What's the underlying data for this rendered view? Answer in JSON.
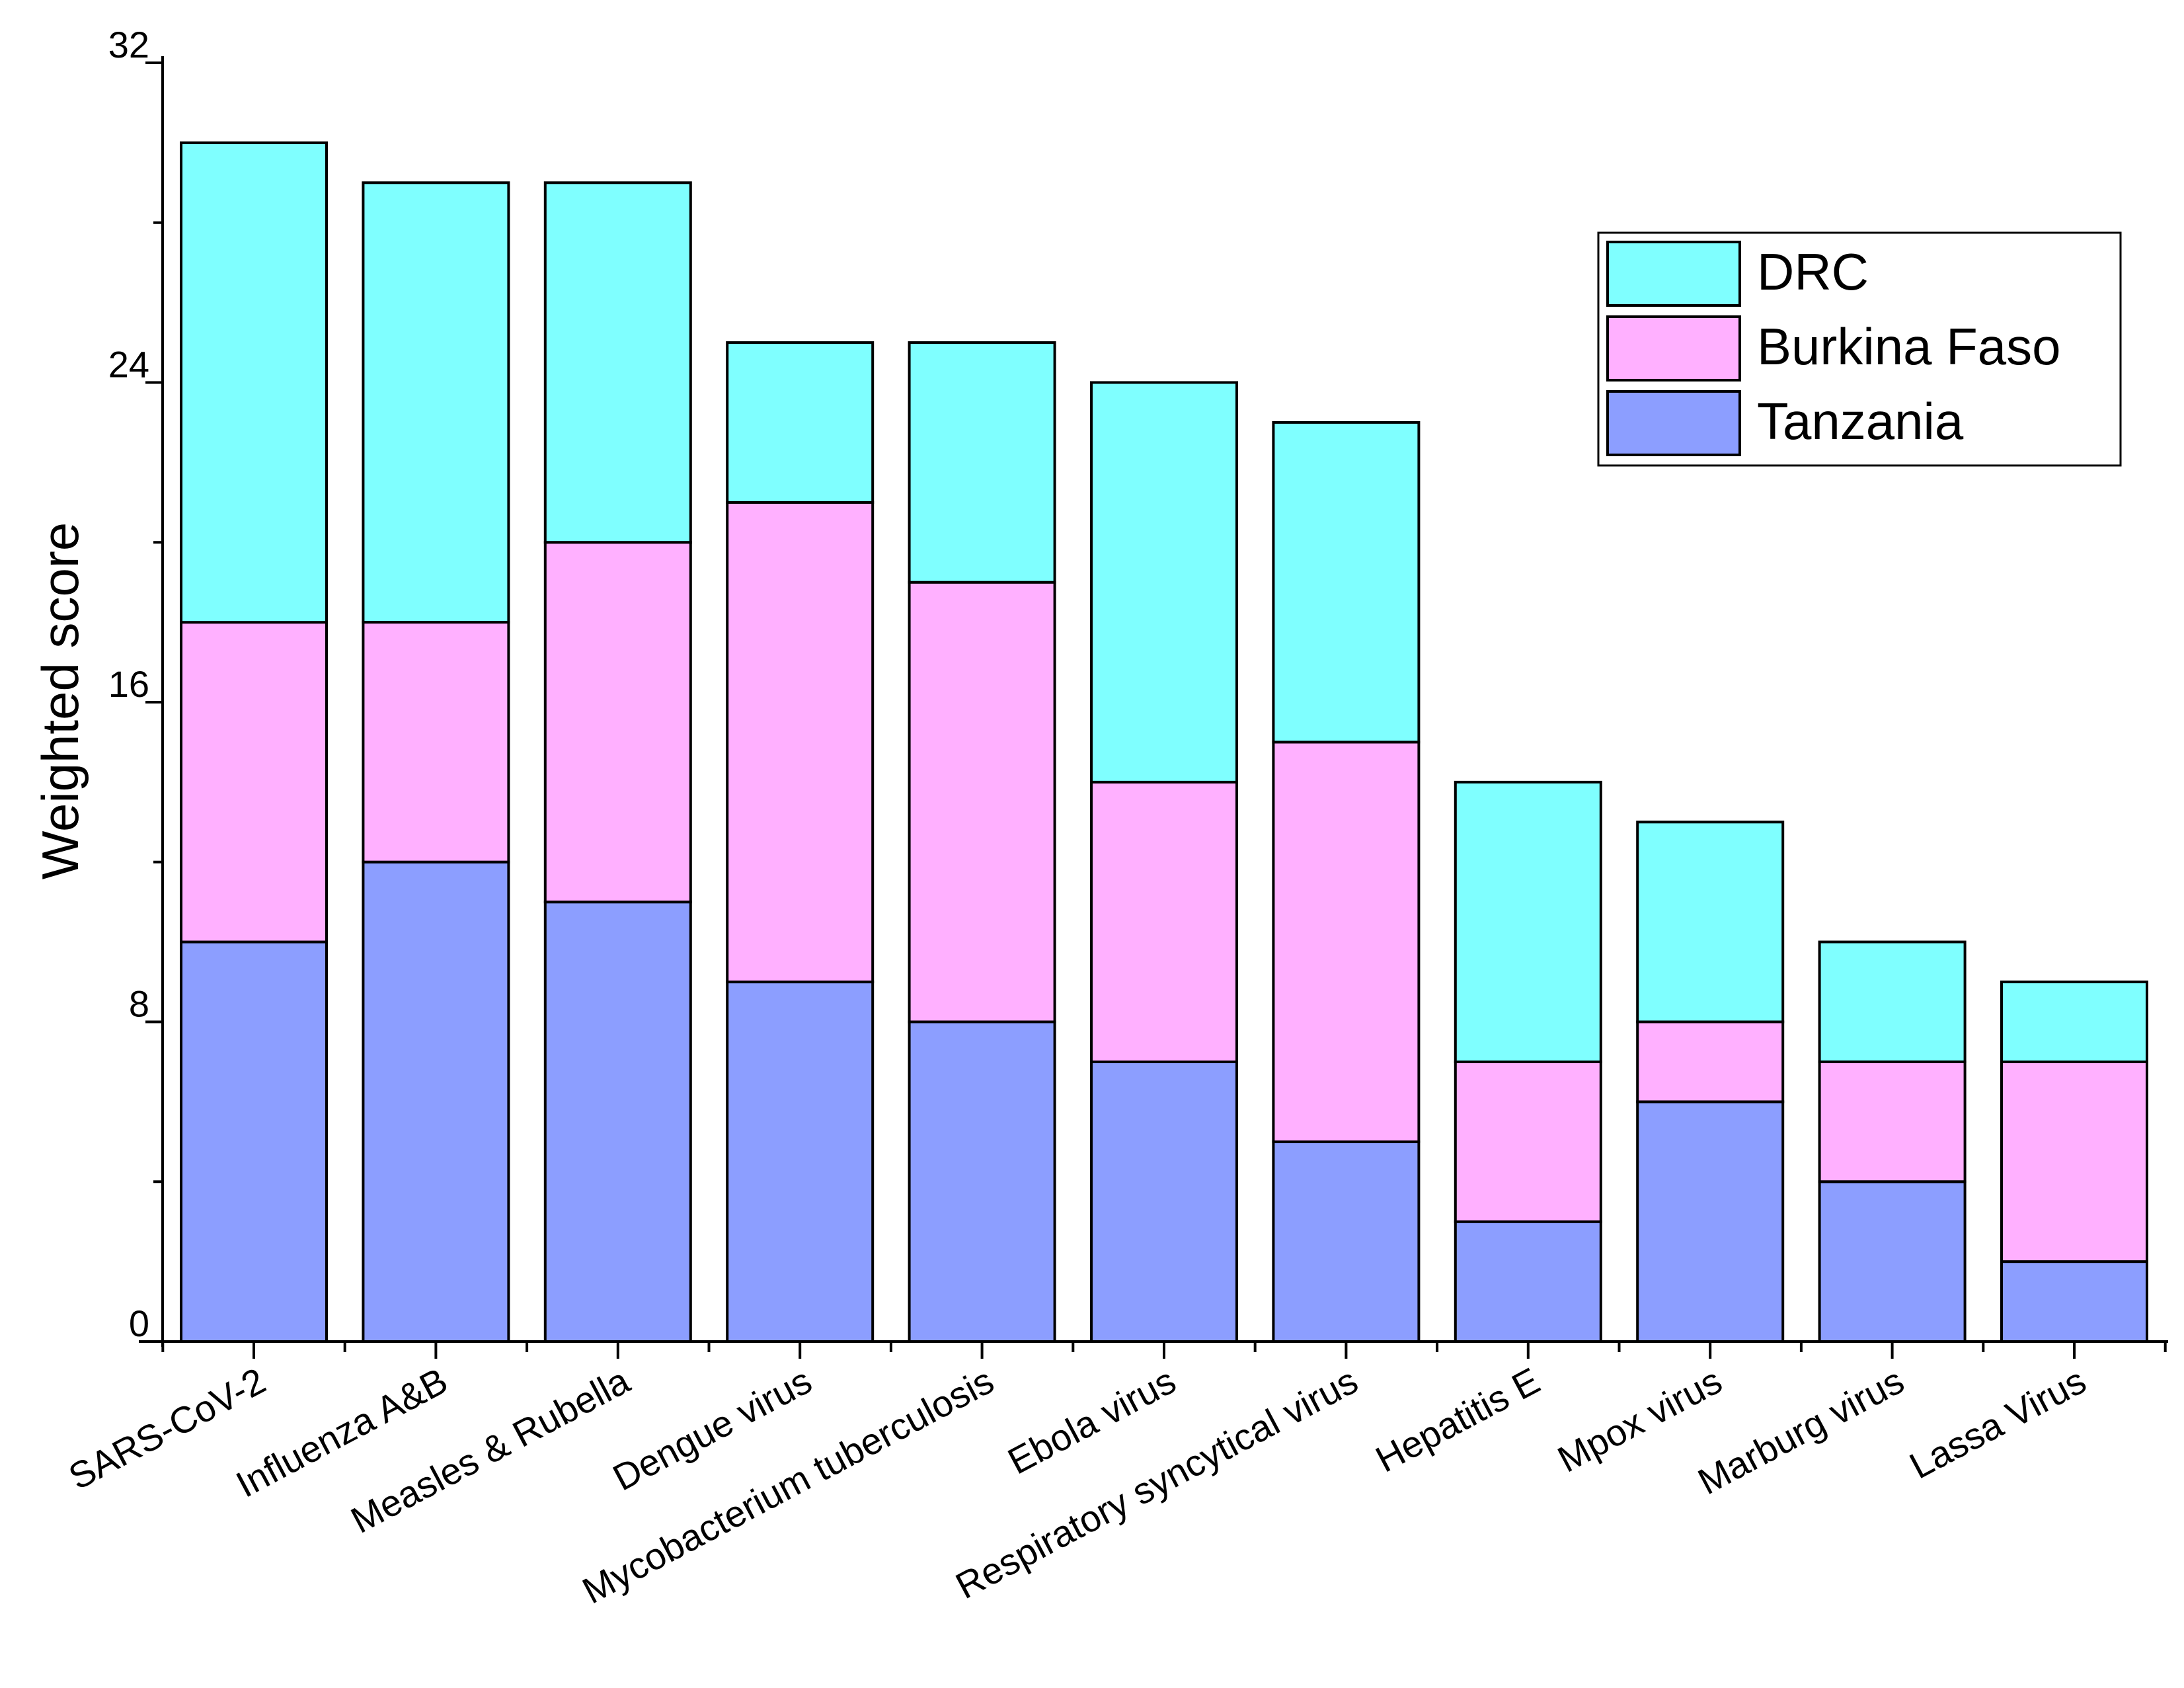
{
  "chart_data": {
    "type": "bar",
    "stacked": true,
    "title": "",
    "xlabel": "",
    "ylabel": "Weighted score",
    "ylim": [
      0,
      32
    ],
    "yticks": [
      0,
      8,
      16,
      24,
      32
    ],
    "grid": false,
    "legend_position": "top-right",
    "categories": [
      "SARS-CoV-2",
      "Influenza A&B",
      "Measles & Rubella",
      "Dengue virus",
      "Mycobacterium tuberculosis",
      "Ebola virus",
      "Respiratory syncytical virus",
      "Hepatitis E",
      "Mpox virus",
      "Marburg virus",
      "Lassa Virus"
    ],
    "series": [
      {
        "name": "Tanzania",
        "color": "#8c9eff",
        "values": [
          10,
          12,
          11,
          9,
          8,
          7,
          5,
          3,
          6,
          4,
          2
        ]
      },
      {
        "name": "Burkina Faso",
        "color": "#ffb0ff",
        "values": [
          8,
          6,
          9,
          12,
          11,
          7,
          10,
          4,
          2,
          3,
          5
        ]
      },
      {
        "name": "DRC",
        "color": "#7fffff",
        "values": [
          12,
          11,
          9,
          4,
          6,
          10,
          8,
          7,
          5,
          3,
          2
        ]
      }
    ],
    "legend_order": [
      "DRC",
      "Burkina Faso",
      "Tanzania"
    ]
  }
}
